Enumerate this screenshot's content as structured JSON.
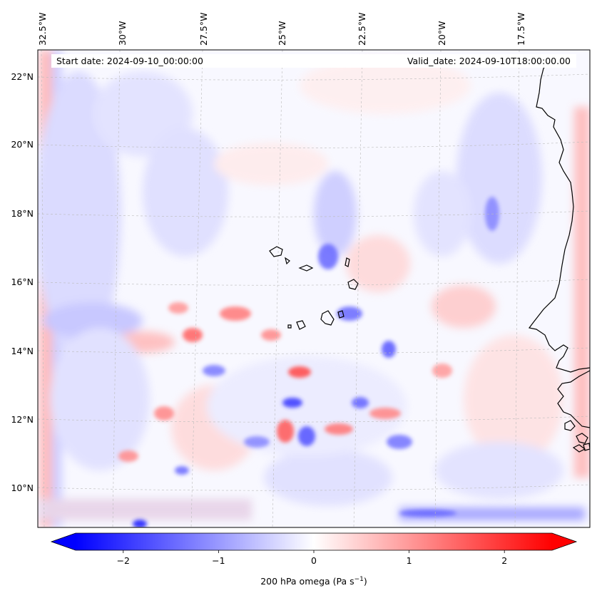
{
  "map": {
    "start_date": "Start date: 2024-09-10_00:00:00",
    "valid_date": "Valid_date: 2024-09-10T18:00:00.00",
    "lon_labels": [
      "32.5°W",
      "30°W",
      "27.5°W",
      "25°W",
      "22.5°W",
      "20°W",
      "17.5°W"
    ],
    "lat_labels": [
      "22°N",
      "20°N",
      "18°N",
      "16°N",
      "14°N",
      "12°N",
      "10°N"
    ],
    "colors": {
      "negative": "#0000ff",
      "neutral": "#ffffff",
      "positive": "#ff0000",
      "coast": "#000000"
    }
  },
  "colorbar": {
    "ticks": [
      "−2",
      "−1",
      "0",
      "1",
      "2"
    ],
    "tick_values": [
      -2,
      -1,
      0,
      1,
      2
    ],
    "range": [
      -2.5,
      2.5
    ],
    "label": "200 hPa omega (Pa s",
    "label_sup": "−1",
    "label_close": ")"
  }
}
